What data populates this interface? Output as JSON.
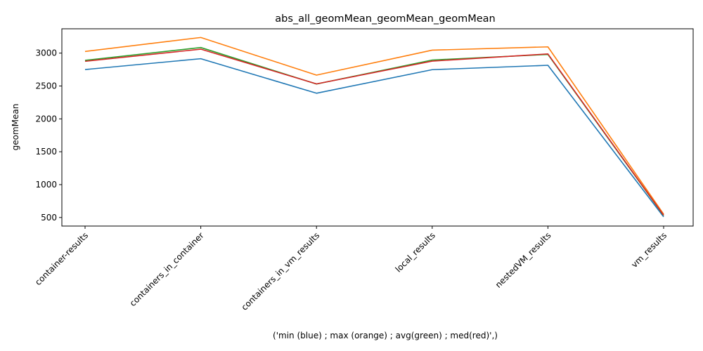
{
  "chart_data": {
    "type": "line",
    "title": "abs_all_geomMean_geomMean_geomMean",
    "xlabel": "('min (blue) ; max (orange) ; avg(green) ; med(red)',)",
    "ylabel": "geomMean",
    "categories": [
      "container-results",
      "containers_in_container",
      "containers_in_vm_results",
      "local_results",
      "nestedVM_results",
      "vm_results"
    ],
    "ylim": [
      370,
      3370
    ],
    "yticks": [
      500,
      1000,
      1500,
      2000,
      2500,
      3000
    ],
    "grid": false,
    "legend": "none",
    "series": [
      {
        "color": "#1f77b4",
        "values": [
          2750,
          2915,
          2390,
          2748,
          2815,
          510
        ]
      },
      {
        "color": "#ff7f0e",
        "values": [
          3025,
          3238,
          2665,
          3045,
          3095,
          550
        ]
      },
      {
        "color": "#2ca02c",
        "values": [
          2890,
          3085,
          2530,
          2895,
          2980,
          530
        ]
      },
      {
        "color": "#d62728",
        "values": [
          2875,
          3060,
          2532,
          2878,
          2988,
          535
        ]
      }
    ]
  }
}
